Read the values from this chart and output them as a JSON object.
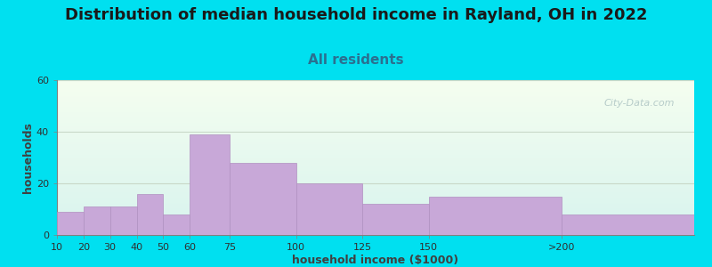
{
  "title": "Distribution of median household income in Rayland, OH in 2022",
  "subtitle": "All residents",
  "xlabel": "household income ($1000)",
  "ylabel": "households",
  "background_outer": "#00e0f0",
  "bar_color": "#c8a8d8",
  "bar_edge_color": "#b090c0",
  "values": [
    9,
    11,
    11,
    16,
    8,
    39,
    28,
    20,
    12,
    15,
    8
  ],
  "ylim": [
    0,
    60
  ],
  "yticks": [
    0,
    20,
    40,
    60
  ],
  "title_fontsize": 13,
  "subtitle_fontsize": 11,
  "axis_label_fontsize": 9,
  "tick_fontsize": 8,
  "watermark_text": "City-Data.com",
  "watermark_color": "#a8c0c0",
  "grid_color": "#c8d8c8",
  "tick_positions": [
    10,
    20,
    30,
    40,
    50,
    60,
    75,
    100,
    125,
    150,
    200,
    250
  ],
  "xtick_pos": [
    10,
    20,
    30,
    40,
    50,
    60,
    75,
    100,
    125,
    150,
    200
  ],
  "xtick_labels": [
    "10",
    "20",
    "30",
    "40",
    "50",
    "60",
    "75",
    "100",
    "125",
    "150",
    ">200"
  ]
}
